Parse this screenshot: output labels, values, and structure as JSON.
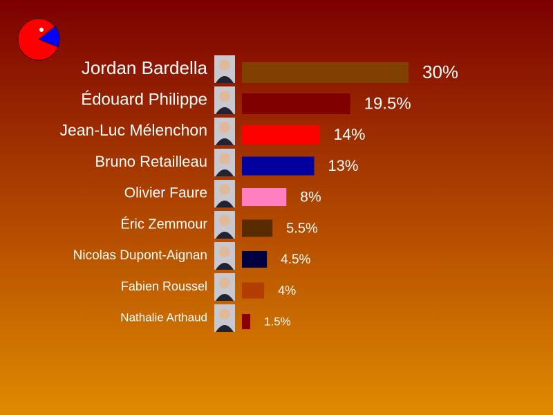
{
  "chart_data": {
    "type": "bar",
    "categories": [
      "Jordan Bardella",
      "Édouard Philippe",
      "Jean-Luc Mélenchon",
      "Bruno Retailleau",
      "Olivier Faure",
      "Éric Zemmour",
      "Nicolas Dupont-Aignan",
      "Fabien Roussel",
      "Nathalie Arthaud"
    ],
    "values": [
      30,
      19.5,
      14,
      13,
      8,
      5.5,
      4.5,
      4,
      1.5
    ],
    "value_labels": [
      "30%",
      "19.5%",
      "14%",
      "13%",
      "8%",
      "5.5%",
      "4.5%",
      "4%",
      "1.5%"
    ],
    "colors": [
      "#804000",
      "#800000",
      "#ff0000",
      "#0000a0",
      "#ff80c0",
      "#582c00",
      "#000040",
      "#b33c00",
      "#8b0000"
    ]
  }
}
